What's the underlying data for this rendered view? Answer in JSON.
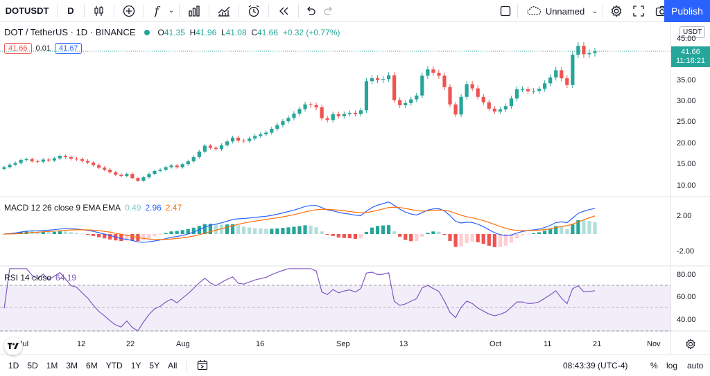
{
  "toolbar": {
    "symbol": "DOTUSDT",
    "interval": "D",
    "fx_label": "f",
    "layout_name": "Unnamed",
    "publish_label": "Publish"
  },
  "legend": {
    "title": "DOT / TetherUS · 1D · BINANCE",
    "open_key": "O",
    "open": "41.35",
    "high_key": "H",
    "high": "41.96",
    "low_key": "L",
    "low": "41.08",
    "close_key": "C",
    "close": "41.66",
    "change": "+0.32 (+0.77%)",
    "bid": "41.66",
    "spread": "0.01",
    "ask": "41.67"
  },
  "price_axis": {
    "currency": "USDT",
    "ticks": [
      "45.00",
      "40.00",
      "35.00",
      "30.00",
      "25.00",
      "20.00",
      "15.00",
      "10.00"
    ],
    "last_price": "41.66",
    "countdown": "11:16:21"
  },
  "macd": {
    "label": "MACD 12 26 close 9 EMA EMA",
    "hist": "0.49",
    "macd": "2.96",
    "signal": "2.47",
    "ticks": [
      "2.00",
      "-2.00"
    ]
  },
  "rsi": {
    "label": "RSI 14 close",
    "value": "64.19",
    "ticks": [
      "80.00",
      "60.00",
      "40.00"
    ]
  },
  "time_axis": [
    "Jul",
    "12",
    "22",
    "Aug",
    "16",
    "Sep",
    "13",
    "Oct",
    "11",
    "21",
    "Nov"
  ],
  "bottombar": {
    "ranges": [
      "1D",
      "5D",
      "1M",
      "3M",
      "6M",
      "YTD",
      "1Y",
      "5Y",
      "All"
    ],
    "time": "08:43:39 (UTC-4)",
    "percent": "%",
    "log": "log",
    "auto": "auto"
  },
  "colors": {
    "up": "#26a69a",
    "down": "#ef5350",
    "macd_line": "#2962ff",
    "signal_line": "#ff6d00",
    "rsi_line": "#7e57c2",
    "accent": "#2962ff"
  },
  "chart_data": {
    "type": "candlestick",
    "price_range": [
      8,
      47
    ],
    "closes": [
      14.2,
      14.8,
      15.2,
      15.9,
      16.1,
      15.6,
      15.5,
      16.0,
      15.8,
      16.3,
      16.9,
      16.6,
      16.2,
      16.1,
      15.7,
      15.3,
      14.7,
      14.1,
      13.6,
      13.0,
      12.4,
      12.1,
      12.6,
      11.6,
      11.0,
      11.8,
      12.6,
      13.3,
      13.6,
      14.2,
      14.6,
      14.2,
      14.9,
      15.6,
      16.6,
      17.9,
      19.3,
      18.8,
      18.5,
      19.4,
      20.3,
      21.2,
      20.5,
      20.4,
      21.0,
      21.6,
      22.0,
      22.4,
      23.3,
      24.2,
      25.1,
      25.9,
      26.9,
      28.0,
      29.1,
      28.9,
      28.4,
      25.8,
      25.4,
      26.8,
      26.3,
      26.8,
      27.1,
      26.8,
      27.7,
      34.6,
      35.3,
      34.9,
      35.1,
      36.0,
      30.1,
      28.9,
      29.4,
      30.3,
      31.2,
      35.9,
      37.4,
      36.6,
      35.9,
      33.2,
      29.1,
      26.7,
      30.9,
      33.9,
      32.9,
      30.9,
      29.6,
      28.1,
      27.4,
      27.9,
      28.7,
      30.5,
      32.7,
      32.7,
      32.2,
      32.3,
      32.8,
      34.1,
      35.5,
      37.2,
      35.3,
      33.7,
      40.9,
      43.0,
      41.0,
      41.3,
      41.7
    ]
  }
}
